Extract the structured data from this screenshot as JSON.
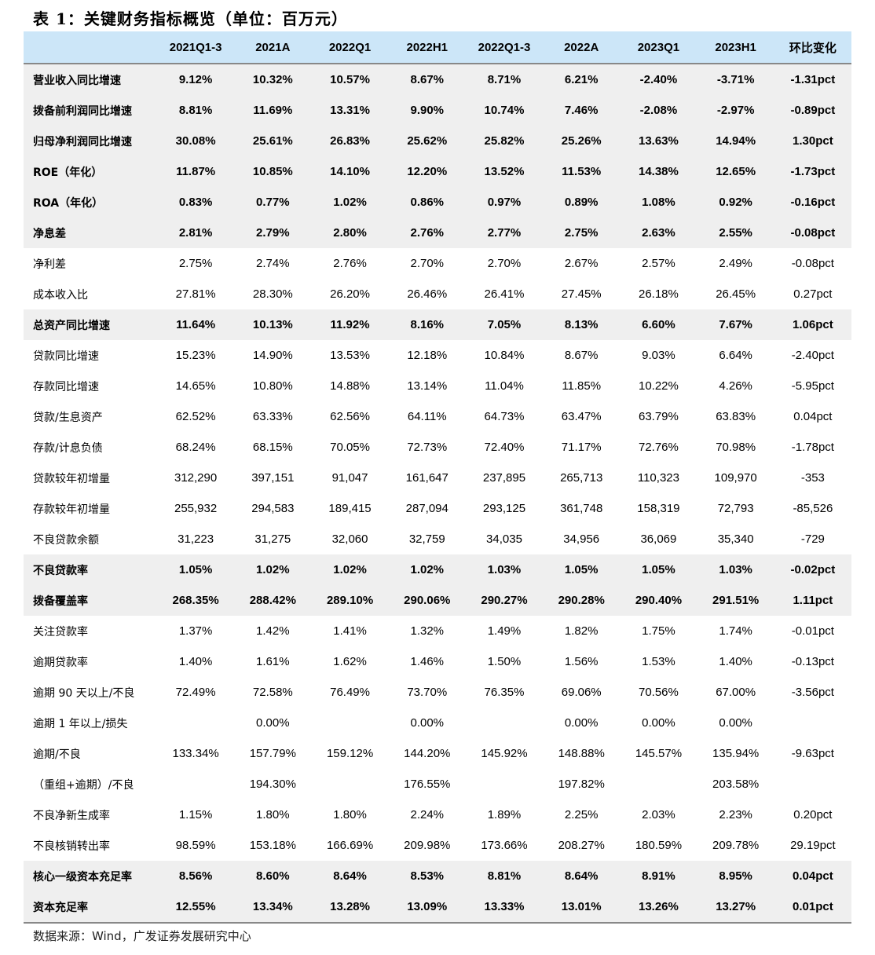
{
  "title": "表 1：关键财务指标概览（单位：百万元）",
  "columns": [
    "",
    "2021Q1-3",
    "2021A",
    "2022Q1",
    "2022H1",
    "2022Q1-3",
    "2022A",
    "2023Q1",
    "2023H1",
    "环比变化"
  ],
  "rows": [
    {
      "label": "营业收入同比增速",
      "bold": true,
      "values": [
        "9.12%",
        "10.32%",
        "10.57%",
        "8.67%",
        "8.71%",
        "6.21%",
        "-2.40%",
        "-3.71%",
        "-1.31pct"
      ]
    },
    {
      "label": "拨备前利润同比增速",
      "bold": true,
      "values": [
        "8.81%",
        "11.69%",
        "13.31%",
        "9.90%",
        "10.74%",
        "7.46%",
        "-2.08%",
        "-2.97%",
        "-0.89pct"
      ]
    },
    {
      "label": "归母净利润同比增速",
      "bold": true,
      "values": [
        "30.08%",
        "25.61%",
        "26.83%",
        "25.62%",
        "25.82%",
        "25.26%",
        "13.63%",
        "14.94%",
        "1.30pct"
      ]
    },
    {
      "label": "ROE（年化）",
      "bold": true,
      "values": [
        "11.87%",
        "10.85%",
        "14.10%",
        "12.20%",
        "13.52%",
        "11.53%",
        "14.38%",
        "12.65%",
        "-1.73pct"
      ]
    },
    {
      "label": "ROA（年化）",
      "bold": true,
      "values": [
        "0.83%",
        "0.77%",
        "1.02%",
        "0.86%",
        "0.97%",
        "0.89%",
        "1.08%",
        "0.92%",
        "-0.16pct"
      ]
    },
    {
      "label": "净息差",
      "bold": true,
      "values": [
        "2.81%",
        "2.79%",
        "2.80%",
        "2.76%",
        "2.77%",
        "2.75%",
        "2.63%",
        "2.55%",
        "-0.08pct"
      ]
    },
    {
      "label": "净利差",
      "bold": false,
      "values": [
        "2.75%",
        "2.74%",
        "2.76%",
        "2.70%",
        "2.70%",
        "2.67%",
        "2.57%",
        "2.49%",
        "-0.08pct"
      ]
    },
    {
      "label": "成本收入比",
      "bold": false,
      "values": [
        "27.81%",
        "28.30%",
        "26.20%",
        "26.46%",
        "26.41%",
        "27.45%",
        "26.18%",
        "26.45%",
        "0.27pct"
      ]
    },
    {
      "label": "总资产同比增速",
      "bold": true,
      "values": [
        "11.64%",
        "10.13%",
        "11.92%",
        "8.16%",
        "7.05%",
        "8.13%",
        "6.60%",
        "7.67%",
        "1.06pct"
      ]
    },
    {
      "label": "贷款同比增速",
      "bold": false,
      "values": [
        "15.23%",
        "14.90%",
        "13.53%",
        "12.18%",
        "10.84%",
        "8.67%",
        "9.03%",
        "6.64%",
        "-2.40pct"
      ]
    },
    {
      "label": "存款同比增速",
      "bold": false,
      "values": [
        "14.65%",
        "10.80%",
        "14.88%",
        "13.14%",
        "11.04%",
        "11.85%",
        "10.22%",
        "4.26%",
        "-5.95pct"
      ]
    },
    {
      "label": "贷款/生息资产",
      "bold": false,
      "values": [
        "62.52%",
        "63.33%",
        "62.56%",
        "64.11%",
        "64.73%",
        "63.47%",
        "63.79%",
        "63.83%",
        "0.04pct"
      ]
    },
    {
      "label": "存款/计息负债",
      "bold": false,
      "values": [
        "68.24%",
        "68.15%",
        "70.05%",
        "72.73%",
        "72.40%",
        "71.17%",
        "72.76%",
        "70.98%",
        "-1.78pct"
      ]
    },
    {
      "label": "贷款较年初增量",
      "bold": false,
      "values": [
        "312,290",
        "397,151",
        "91,047",
        "161,647",
        "237,895",
        "265,713",
        "110,323",
        "109,970",
        "-353"
      ]
    },
    {
      "label": "存款较年初增量",
      "bold": false,
      "values": [
        "255,932",
        "294,583",
        "189,415",
        "287,094",
        "293,125",
        "361,748",
        "158,319",
        "72,793",
        "-85,526"
      ]
    },
    {
      "label": "不良贷款余额",
      "bold": false,
      "values": [
        "31,223",
        "31,275",
        "32,060",
        "32,759",
        "34,035",
        "34,956",
        "36,069",
        "35,340",
        "-729"
      ]
    },
    {
      "label": "不良贷款率",
      "bold": true,
      "values": [
        "1.05%",
        "1.02%",
        "1.02%",
        "1.02%",
        "1.03%",
        "1.05%",
        "1.05%",
        "1.03%",
        "-0.02pct"
      ]
    },
    {
      "label": "拨备覆盖率",
      "bold": true,
      "values": [
        "268.35%",
        "288.42%",
        "289.10%",
        "290.06%",
        "290.27%",
        "290.28%",
        "290.40%",
        "291.51%",
        "1.11pct"
      ]
    },
    {
      "label": "关注贷款率",
      "bold": false,
      "values": [
        "1.37%",
        "1.42%",
        "1.41%",
        "1.32%",
        "1.49%",
        "1.82%",
        "1.75%",
        "1.74%",
        "-0.01pct"
      ]
    },
    {
      "label": "逾期贷款率",
      "bold": false,
      "values": [
        "1.40%",
        "1.61%",
        "1.62%",
        "1.46%",
        "1.50%",
        "1.56%",
        "1.53%",
        "1.40%",
        "-0.13pct"
      ]
    },
    {
      "label": "逾期 90 天以上/不良",
      "bold": false,
      "values": [
        "72.49%",
        "72.58%",
        "76.49%",
        "73.70%",
        "76.35%",
        "69.06%",
        "70.56%",
        "67.00%",
        "-3.56pct"
      ]
    },
    {
      "label": "逾期 1 年以上/损失",
      "bold": false,
      "values": [
        "",
        "0.00%",
        "",
        "0.00%",
        "",
        "0.00%",
        "0.00%",
        "0.00%",
        ""
      ]
    },
    {
      "label": "逾期/不良",
      "bold": false,
      "values": [
        "133.34%",
        "157.79%",
        "159.12%",
        "144.20%",
        "145.92%",
        "148.88%",
        "145.57%",
        "135.94%",
        "-9.63pct"
      ]
    },
    {
      "label": "（重组+逾期）/不良",
      "bold": false,
      "values": [
        "",
        "194.30%",
        "",
        "176.55%",
        "",
        "197.82%",
        "",
        "203.58%",
        ""
      ]
    },
    {
      "label": "不良净新生成率",
      "bold": false,
      "values": [
        "1.15%",
        "1.80%",
        "1.80%",
        "2.24%",
        "1.89%",
        "2.25%",
        "2.03%",
        "2.23%",
        "0.20pct"
      ]
    },
    {
      "label": "不良核销转出率",
      "bold": false,
      "values": [
        "98.59%",
        "153.18%",
        "166.69%",
        "209.98%",
        "173.66%",
        "208.27%",
        "180.59%",
        "209.78%",
        "29.19pct"
      ]
    },
    {
      "label": "核心一级资本充足率",
      "bold": true,
      "values": [
        "8.56%",
        "8.60%",
        "8.64%",
        "8.53%",
        "8.81%",
        "8.64%",
        "8.91%",
        "8.95%",
        "0.04pct"
      ]
    },
    {
      "label": "资本充足率",
      "bold": true,
      "values": [
        "12.55%",
        "13.34%",
        "13.28%",
        "13.09%",
        "13.33%",
        "13.01%",
        "13.26%",
        "13.27%",
        "0.01pct"
      ]
    }
  ],
  "source": "数据来源：Wind，广发证券发展研究中心",
  "colors": {
    "header_bg": "#cce6f8",
    "bold_row_bg": "#efefef"
  }
}
